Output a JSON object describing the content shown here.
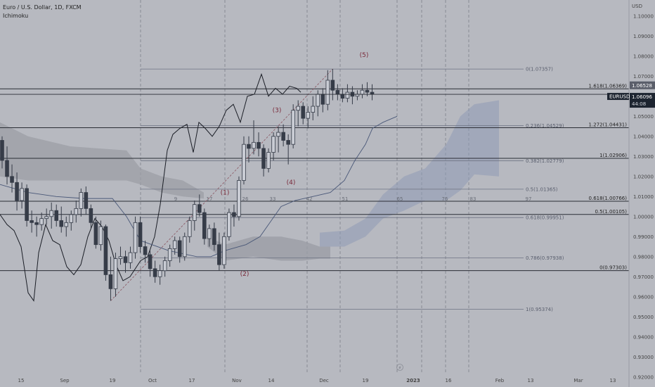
{
  "header": {
    "title": "Euro / U.S. Dollar, 1D, FXCM",
    "indicator": "Ichimoku"
  },
  "axis": {
    "currency": "USD",
    "price_min": 0.915,
    "price_max": 1.108,
    "price_ticks": [
      1.1,
      1.09,
      1.08,
      1.07,
      1.05,
      1.04,
      1.03,
      1.02,
      1.01,
      1.0,
      0.99,
      0.98,
      0.97,
      0.96,
      0.95,
      0.94,
      0.93,
      0.92
    ],
    "date_labels": [
      "15",
      "Sep",
      "19",
      "Oct",
      "17",
      "Nov",
      "14",
      "Dec",
      "19",
      "2023",
      "16",
      "Feb",
      "13",
      "Mar",
      "13"
    ],
    "bold_date": "2023"
  },
  "price_tags": {
    "upper": "1.06528",
    "symbol": "EURUSD",
    "current": "1.06096",
    "countdown": "44:08"
  },
  "fib_levels": [
    {
      "label": "0(1.07357)",
      "value": 1.07357,
      "faint": true
    },
    {
      "label": "1.618(1.06369)",
      "value": 1.06369,
      "faint": false
    },
    {
      "label": "0.236(1.04529)",
      "value": 1.04529,
      "faint": true
    },
    {
      "label": "1.272(1.04431)",
      "value": 1.04431,
      "faint": false
    },
    {
      "label": "0.382(1.02779)",
      "value": 1.02779,
      "faint": true
    },
    {
      "label": "1(1.02906)",
      "value": 1.02906,
      "faint": false
    },
    {
      "label": "0.5(1.01365)",
      "value": 1.01365,
      "faint": true
    },
    {
      "label": "0.618(1.00766)",
      "value": 1.00766,
      "faint": false
    },
    {
      "label": "0.5(1.00105)",
      "value": 1.00105,
      "faint": false
    },
    {
      "label": "0.618(0.99951)",
      "value": 0.99951,
      "faint": true
    },
    {
      "label": "0.786(0.97938)",
      "value": 0.97938,
      "faint": true
    },
    {
      "label": "0(0.97303)",
      "value": 0.97303,
      "faint": false
    },
    {
      "label": "1(0.95374)",
      "value": 0.95374,
      "faint": true
    }
  ],
  "bar_counts": [
    "9",
    "17",
    "26",
    "33",
    "42",
    "51",
    "65",
    "76",
    "83",
    "97"
  ],
  "waves": [
    {
      "label": "(1)",
      "value": 1.011
    },
    {
      "label": "(2)",
      "value": 0.9705
    },
    {
      "label": "(3)",
      "value": 1.052
    },
    {
      "label": "(4)",
      "value": 1.016
    },
    {
      "label": "(5)",
      "value": 1.0795
    }
  ],
  "colors": {
    "background": "#b7b9c0",
    "candle": "#363c48",
    "cloud_bearish": "#9a9ca4",
    "cloud_bullish": "#8f9ab4",
    "upper_tag": "#5a5e6a",
    "current_tag": "#1d2430"
  },
  "chart_data": {
    "type": "candlestick",
    "title": "Euro / U.S. Dollar, 1D, FXCM",
    "xlabel": "",
    "ylabel": "USD",
    "ylim": [
      0.915,
      1.108
    ],
    "candles": [
      [
        1.038,
        1.04,
        1.024,
        1.028
      ],
      [
        1.028,
        1.035,
        1.016,
        1.02
      ],
      [
        1.02,
        1.026,
        1.012,
        1.017
      ],
      [
        1.017,
        1.022,
        1.003,
        1.008
      ],
      [
        1.008,
        1.017,
        1.004,
        1.014
      ],
      [
        1.014,
        1.016,
        0.995,
        0.998
      ],
      [
        0.998,
        1.003,
        0.992,
        0.997
      ],
      [
        0.997,
        1.0,
        0.99,
        0.996
      ],
      [
        0.996,
        1.002,
        0.993,
        0.999
      ],
      [
        0.999,
        1.004,
        0.996,
        1.0
      ],
      [
        1.0,
        1.007,
        0.994,
        1.003
      ],
      [
        1.003,
        1.006,
        0.995,
        0.998
      ],
      [
        0.998,
        1.005,
        0.992,
        0.995
      ],
      [
        0.995,
        1.0,
        0.99,
        0.997
      ],
      [
        0.997,
        1.003,
        0.993,
        1.001
      ],
      [
        1.001,
        1.008,
        0.997,
        1.004
      ],
      [
        1.004,
        1.014,
        1.0,
        1.012
      ],
      [
        1.012,
        1.015,
        1.001,
        1.004
      ],
      [
        1.004,
        1.006,
        0.994,
        0.997
      ],
      [
        0.997,
        1.0,
        0.984,
        0.986
      ],
      [
        0.986,
        0.998,
        0.983,
        0.995
      ],
      [
        0.995,
        0.996,
        0.968,
        0.971
      ],
      [
        0.971,
        0.98,
        0.958,
        0.964
      ],
      [
        0.964,
        0.982,
        0.96,
        0.979
      ],
      [
        0.979,
        0.985,
        0.976,
        0.98
      ],
      [
        0.98,
        0.983,
        0.972,
        0.977
      ],
      [
        0.977,
        0.985,
        0.974,
        0.982
      ],
      [
        0.982,
        1.0,
        0.979,
        0.997
      ],
      [
        0.997,
        1.0,
        0.982,
        0.985
      ],
      [
        0.985,
        0.988,
        0.977,
        0.981
      ],
      [
        0.981,
        0.983,
        0.97,
        0.974
      ],
      [
        0.974,
        0.978,
        0.967,
        0.97
      ],
      [
        0.97,
        0.976,
        0.966,
        0.973
      ],
      [
        0.973,
        0.98,
        0.97,
        0.978
      ],
      [
        0.978,
        0.986,
        0.975,
        0.984
      ],
      [
        0.984,
        0.99,
        0.981,
        0.988
      ],
      [
        0.988,
        0.99,
        0.977,
        0.98
      ],
      [
        0.98,
        0.992,
        0.978,
        0.99
      ],
      [
        0.99,
        1.0,
        0.987,
        0.998
      ],
      [
        0.998,
        1.008,
        0.993,
        1.006
      ],
      [
        1.006,
        1.011,
        1.0,
        1.002
      ],
      [
        1.002,
        1.004,
        0.986,
        0.989
      ],
      [
        0.989,
        0.996,
        0.985,
        0.994
      ],
      [
        0.994,
        0.997,
        0.983,
        0.986
      ],
      [
        0.986,
        0.992,
        0.973,
        0.976
      ],
      [
        0.976,
        0.992,
        0.974,
        0.99
      ],
      [
        0.99,
        1.004,
        0.988,
        1.002
      ],
      [
        1.002,
        1.006,
        0.995,
        1.0
      ],
      [
        1.0,
        1.02,
        0.998,
        1.018
      ],
      [
        1.018,
        1.04,
        1.016,
        1.036
      ],
      [
        1.036,
        1.04,
        1.027,
        1.034
      ],
      [
        1.034,
        1.048,
        1.031,
        1.037
      ],
      [
        1.037,
        1.042,
        1.03,
        1.034
      ],
      [
        1.034,
        1.036,
        1.02,
        1.024
      ],
      [
        1.024,
        1.034,
        1.022,
        1.032
      ],
      [
        1.032,
        1.042,
        1.028,
        1.04
      ],
      [
        1.04,
        1.045,
        1.032,
        1.042
      ],
      [
        1.042,
        1.046,
        1.035,
        1.038
      ],
      [
        1.038,
        1.041,
        1.026,
        1.036
      ],
      [
        1.036,
        1.056,
        1.034,
        1.053
      ],
      [
        1.053,
        1.058,
        1.045,
        1.055
      ],
      [
        1.055,
        1.057,
        1.046,
        1.049
      ],
      [
        1.049,
        1.055,
        1.044,
        1.052
      ],
      [
        1.052,
        1.06,
        1.048,
        1.055
      ],
      [
        1.055,
        1.063,
        1.05,
        1.061
      ],
      [
        1.061,
        1.064,
        1.052,
        1.056
      ],
      [
        1.056,
        1.073,
        1.053,
        1.068
      ],
      [
        1.068,
        1.0736,
        1.058,
        1.063
      ],
      [
        1.063,
        1.066,
        1.058,
        1.061
      ],
      [
        1.061,
        1.064,
        1.057,
        1.059
      ],
      [
        1.059,
        1.066,
        1.057,
        1.062
      ],
      [
        1.062,
        1.065,
        1.056,
        1.06
      ],
      [
        1.06,
        1.063,
        1.058,
        1.061
      ],
      [
        1.061,
        1.066,
        1.059,
        1.063
      ],
      [
        1.063,
        1.067,
        1.06,
        1.062
      ],
      [
        1.062,
        1.066,
        1.058,
        1.061
      ]
    ]
  }
}
